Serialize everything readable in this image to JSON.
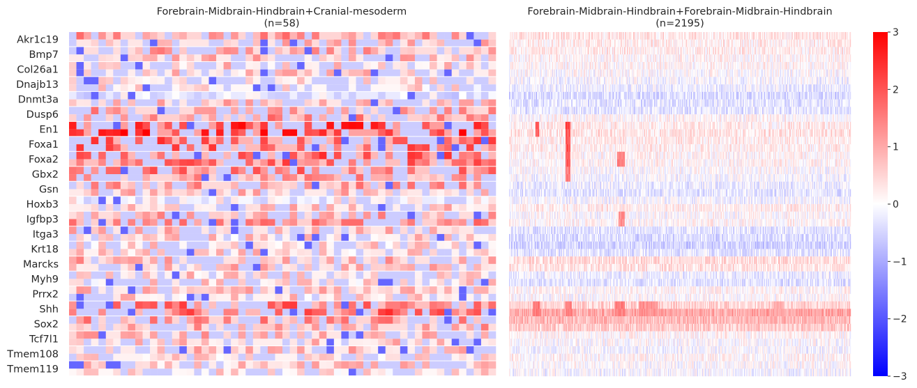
{
  "chart_data": [
    {
      "type": "heatmap",
      "title_line1": "Forebrain-Midbrain-Hindbrain+Cranial-mesoderm",
      "title_line2": "(n=58)",
      "n_columns": 58,
      "y_tick_labels": [
        "Akr1c19",
        "Bmp7",
        "Col26a1",
        "Dnajb13",
        "Dnmt3a",
        "Dusp6",
        "En1",
        "Foxa1",
        "Foxa2",
        "Gbx2",
        "Gsn",
        "Hoxb3",
        "Igfbp3",
        "Itga3",
        "Krt18",
        "Marcks",
        "Myh9",
        "Prrx2",
        "Shh",
        "Sox2",
        "Tcf7l1",
        "Tmem108",
        "Tmem119"
      ],
      "rows_per_gene": 2,
      "row_profile": [
        {
          "gene": "Akr1c19",
          "values": [
            1.0,
            0.6
          ]
        },
        {
          "gene": "Bmp7",
          "values": [
            0.8,
            0.5
          ]
        },
        {
          "gene": "Col26a1",
          "values": [
            0.4,
            0.4
          ]
        },
        {
          "gene": "Dnajb13",
          "values": [
            0.3,
            0.2
          ]
        },
        {
          "gene": "Dnmt3a",
          "values": [
            -0.5,
            0.6
          ]
        },
        {
          "gene": "Dusp6",
          "values": [
            0.9,
            1.1
          ]
        },
        {
          "gene": "En1",
          "values": [
            2.3,
            2.2
          ]
        },
        {
          "gene": "Foxa1",
          "values": [
            1.8,
            1.6
          ]
        },
        {
          "gene": "Foxa2",
          "values": [
            1.7,
            1.5
          ]
        },
        {
          "gene": "Gbx2",
          "values": [
            1.4,
            1.0
          ]
        },
        {
          "gene": "Gsn",
          "values": [
            0.9,
            0.5
          ]
        },
        {
          "gene": "Hoxb3",
          "values": [
            -0.2,
            0.4
          ]
        },
        {
          "gene": "Igfbp3",
          "values": [
            0.8,
            1.1
          ]
        },
        {
          "gene": "Itga3",
          "values": [
            0.6,
            0.3
          ]
        },
        {
          "gene": "Krt18",
          "values": [
            0.2,
            0.3
          ]
        },
        {
          "gene": "Marcks",
          "values": [
            0.7,
            0.5
          ]
        },
        {
          "gene": "Myh9",
          "values": [
            0.3,
            0.2
          ]
        },
        {
          "gene": "Prrx2",
          "values": [
            0.5,
            0.3
          ]
        },
        {
          "gene": "Shh",
          "values": [
            1.5,
            1.7
          ]
        },
        {
          "gene": "Sox2",
          "values": [
            1.0,
            0.8
          ]
        },
        {
          "gene": "Tcf7l1",
          "values": [
            0.6,
            0.4
          ]
        },
        {
          "gene": "Tmem108",
          "values": [
            0.5,
            0.3
          ]
        },
        {
          "gene": "Tmem119",
          "values": [
            0.4,
            0.2
          ]
        }
      ]
    },
    {
      "type": "heatmap",
      "title_line1": "Forebrain-Midbrain-Hindbrain+Forebrain-Midbrain-Hindbrain",
      "title_line2": "(n=2195)",
      "n_columns": 2195,
      "y_tick_labels": [],
      "row_profile": [
        {
          "gene": "Akr1c19",
          "values": [
            0.3,
            0.2
          ]
        },
        {
          "gene": "Bmp7",
          "values": [
            0.2,
            0.1
          ]
        },
        {
          "gene": "Col26a1",
          "values": [
            0.1,
            0.0
          ]
        },
        {
          "gene": "Dnajb13",
          "values": [
            -0.1,
            -0.2
          ]
        },
        {
          "gene": "Dnmt3a",
          "values": [
            -0.4,
            -0.3
          ]
        },
        {
          "gene": "Dusp6",
          "values": [
            -0.3,
            0.1
          ]
        },
        {
          "gene": "En1",
          "values": [
            0.2,
            0.3
          ]
        },
        {
          "gene": "Foxa1",
          "values": [
            0.2,
            0.2
          ]
        },
        {
          "gene": "Foxa2",
          "values": [
            0.1,
            0.1
          ]
        },
        {
          "gene": "Gbx2",
          "values": [
            0.0,
            -0.1
          ]
        },
        {
          "gene": "Gsn",
          "values": [
            -0.2,
            -0.3
          ]
        },
        {
          "gene": "Hoxb3",
          "values": [
            -0.1,
            0.2
          ]
        },
        {
          "gene": "Igfbp3",
          "values": [
            0.0,
            0.1
          ]
        },
        {
          "gene": "Itga3",
          "values": [
            -0.3,
            -0.4
          ]
        },
        {
          "gene": "Krt18",
          "values": [
            -0.5,
            -0.3
          ]
        },
        {
          "gene": "Marcks",
          "values": [
            0.4,
            0.3
          ]
        },
        {
          "gene": "Myh9",
          "values": [
            -0.2,
            -0.3
          ]
        },
        {
          "gene": "Prrx2",
          "values": [
            0.1,
            0.0
          ]
        },
        {
          "gene": "Shh",
          "values": [
            0.5,
            1.0
          ]
        },
        {
          "gene": "Sox2",
          "values": [
            0.8,
            0.6
          ]
        },
        {
          "gene": "Tcf7l1",
          "values": [
            0.1,
            0.0
          ]
        },
        {
          "gene": "Tmem108",
          "values": [
            -0.1,
            0.1
          ]
        },
        {
          "gene": "Tmem119",
          "values": [
            0.0,
            -0.1
          ]
        }
      ],
      "hotspots": [
        {
          "gene": "En1",
          "columns": [
            170,
            190
          ],
          "value": 2.2
        },
        {
          "gene": "En1",
          "columns": [
            360,
            390
          ],
          "value": 2.5
        },
        {
          "gene": "Foxa1",
          "columns": [
            360,
            390
          ],
          "value": 2.3
        },
        {
          "gene": "Foxa2",
          "columns": [
            360,
            390
          ],
          "value": 2.2
        },
        {
          "gene": "Foxa2",
          "columns": [
            690,
            740
          ],
          "value": 1.8
        },
        {
          "gene": "Gbx2",
          "columns": [
            360,
            390
          ],
          "value": 1.8
        },
        {
          "gene": "Igfbp3",
          "columns": [
            700,
            740
          ],
          "value": 1.6
        },
        {
          "gene": "Shh",
          "columns": [
            150,
            200
          ],
          "value": 1.8
        },
        {
          "gene": "Shh",
          "columns": [
            360,
            400
          ],
          "value": 1.8
        },
        {
          "gene": "Shh",
          "columns": [
            680,
            740
          ],
          "value": 1.8
        },
        {
          "gene": "Shh",
          "columns": [
            830,
            950
          ],
          "value": 1.5
        },
        {
          "gene": "Shh",
          "columns": [
            1700,
            1760
          ],
          "value": 1.2
        }
      ]
    }
  ],
  "colorbar": {
    "min": -3,
    "max": 3,
    "ticks": [
      "3",
      "2",
      "1",
      "0",
      "−1",
      "−2",
      "−3"
    ],
    "colors": {
      "low": "#0000ff",
      "mid": "#ffffff",
      "high": "#ff0000"
    }
  }
}
